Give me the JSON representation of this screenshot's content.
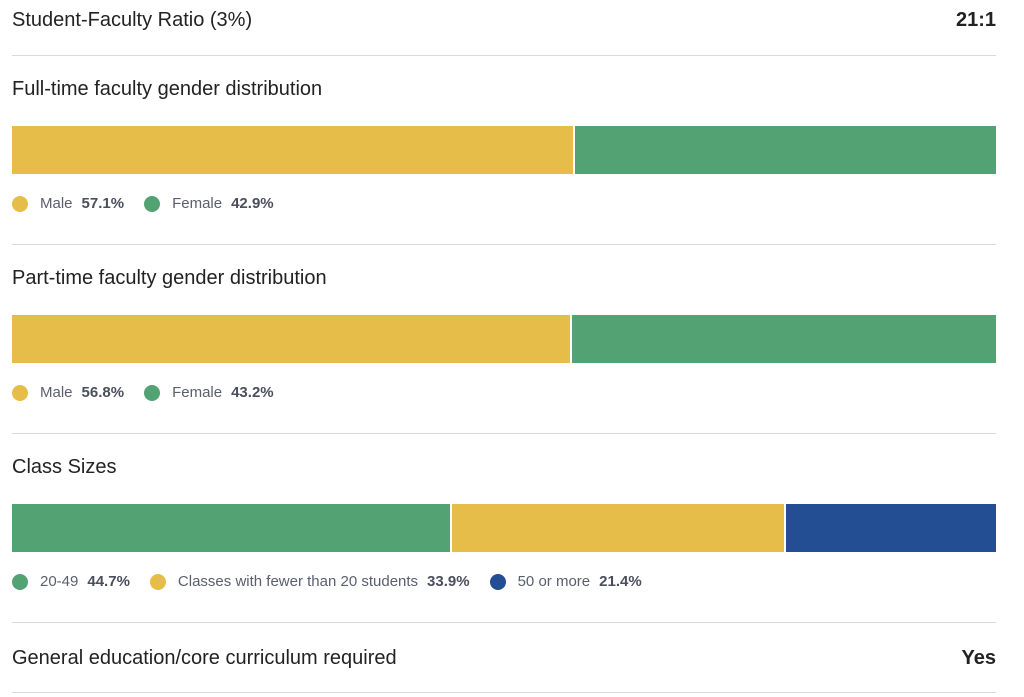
{
  "ratio": {
    "label": "Student-Faculty Ratio (3%)",
    "value": "21:1"
  },
  "colors": {
    "yellow": "#E6BD48",
    "green": "#52A274",
    "blue": "#234E93"
  },
  "sections": [
    {
      "title": "Full-time faculty gender distribution",
      "items": [
        {
          "label": "Male",
          "pct": "57.1%",
          "value": 57.1,
          "color": "#E6BD48"
        },
        {
          "label": "Female",
          "pct": "42.9%",
          "value": 42.9,
          "color": "#52A274"
        }
      ]
    },
    {
      "title": "Part-time faculty gender distribution",
      "items": [
        {
          "label": "Male",
          "pct": "56.8%",
          "value": 56.8,
          "color": "#E6BD48"
        },
        {
          "label": "Female",
          "pct": "43.2%",
          "value": 43.2,
          "color": "#52A274"
        }
      ]
    },
    {
      "title": "Class Sizes",
      "items": [
        {
          "label": "20-49",
          "pct": "44.7%",
          "value": 44.7,
          "color": "#52A274"
        },
        {
          "label": "Classes with fewer than 20 students",
          "pct": "33.9%",
          "value": 33.9,
          "color": "#E6BD48"
        },
        {
          "label": "50 or more",
          "pct": "21.4%",
          "value": 21.4,
          "color": "#234E93"
        }
      ]
    }
  ],
  "curriculum": {
    "label": "General education/core curriculum required",
    "value": "Yes"
  }
}
